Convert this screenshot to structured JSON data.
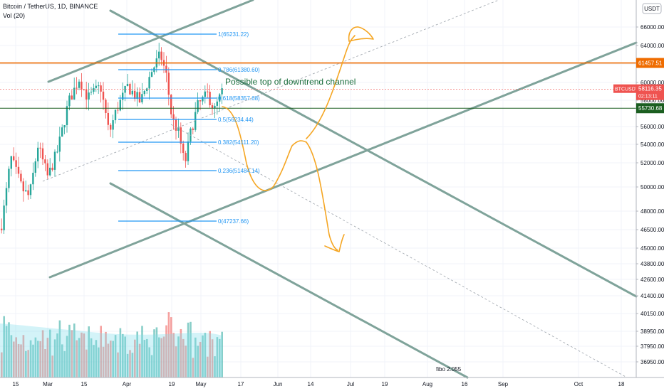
{
  "header": {
    "symbol_line": "Bitcoin / TetherUS, 1D, BINANCE",
    "indicator_line": "Vol (20)"
  },
  "currency_badge": "USDT",
  "price_axis": {
    "ticks": [
      "66000.00",
      "64000.00",
      "62000.00",
      "60000.00",
      "58000.00",
      "56000.00",
      "54000.00",
      "52000.00",
      "50000.00",
      "48000.00",
      "46500.00",
      "45000.00",
      "43800.00",
      "42600.00",
      "41400.00",
      "40150.00",
      "38950.00",
      "37950.00",
      "36950.00"
    ],
    "labels": [
      {
        "text": "61457.51",
        "color": "#ef6c00",
        "value": 61457.51
      },
      {
        "text": "BTCUSDT",
        "subtext": "58116.35",
        "timer": "02:13:11",
        "color": "#ef5350",
        "value": 58116.35
      },
      {
        "text": "55730.68",
        "color": "#1b5e20",
        "value": 55730.68
      }
    ]
  },
  "time_axis": {
    "ticks": [
      "15",
      "Mar",
      "15",
      "Apr",
      "19",
      "May",
      "17",
      "Jun",
      "14",
      "Jul",
      "19",
      "Aug",
      "16",
      "Sep",
      "Oct",
      "18"
    ]
  },
  "fib_levels": [
    {
      "label": "1(65231.22)",
      "price": 65231.22
    },
    {
      "label": "0.786(61380.60)",
      "price": 61380.6
    },
    {
      "label": "0.618(58357.68)",
      "price": 58357.68
    },
    {
      "label": "0.5(56234.44)",
      "price": 56234.44
    },
    {
      "label": "0.382(54111.20)",
      "price": 54111.2
    },
    {
      "label": "0.236(51484.14)",
      "price": 51484.14
    },
    {
      "label": "0(47237.66)",
      "price": 47237.66
    }
  ],
  "annotations": {
    "channel_note": "Possible top of downtrend channel",
    "fibo_label": "fibo 2.055"
  },
  "colors": {
    "up": "#26a69a",
    "down": "#ef5350",
    "channel": "#7fa39a",
    "fib": "#2196f3",
    "resistance": "#ef6c00",
    "support": "#1b5e20",
    "drawing": "#f5a623"
  },
  "chart_data": {
    "type": "candlestick",
    "price_range": [
      36000,
      67500
    ],
    "grid": true,
    "daily_closes_approx": [
      {
        "period": "mid Feb",
        "close": 48000
      },
      {
        "period": "late Feb",
        "close": 46000
      },
      {
        "period": "early Mar",
        "close": 49000
      },
      {
        "period": "mid Mar",
        "close": 61000
      },
      {
        "period": "late Mar",
        "close": 55000
      },
      {
        "period": "early Apr",
        "close": 58000
      },
      {
        "period": "mid Apr",
        "close": 63500
      },
      {
        "period": "late Apr",
        "close": 50000
      },
      {
        "period": "early May",
        "close": 57000
      },
      {
        "period": "current",
        "close": 58116.35
      }
    ],
    "volume": {
      "indicator": "Vol (20)"
    }
  }
}
